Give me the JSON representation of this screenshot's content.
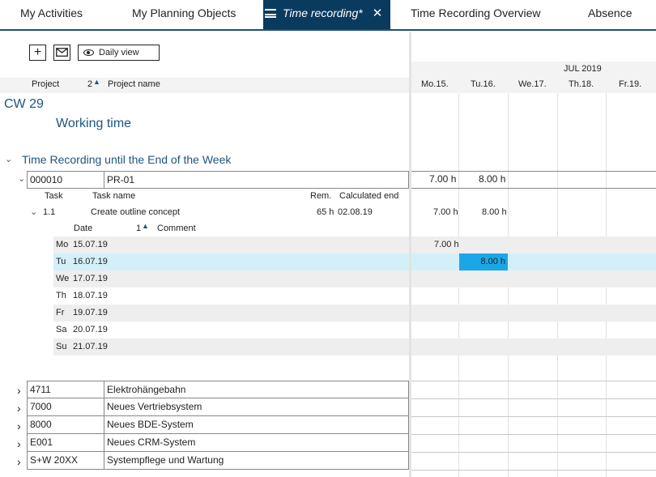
{
  "tabs": [
    {
      "label": "My Activities"
    },
    {
      "label": "My Planning Objects"
    },
    {
      "label": "Time recording*"
    },
    {
      "label": "Time Recording Overview"
    },
    {
      "label": "Absence"
    }
  ],
  "toolbar": {
    "add_icon": "plus-icon",
    "mail_icon": "mail-icon",
    "view_label": "Daily view",
    "view_icon": "eye-icon"
  },
  "header": {
    "project": "Project",
    "sort_index": "2",
    "project_name": "Project name",
    "month": "JUL 2019",
    "days": [
      "Mo.15.",
      "Tu.16.",
      "We.17.",
      "Th.18.",
      "Fr.19."
    ]
  },
  "week": {
    "label": "CW 29",
    "working_time": "Working time"
  },
  "section": {
    "title": "Time Recording until the End of the Week"
  },
  "main_project": {
    "code": "000010",
    "name": "PR-01",
    "totals": [
      "7.00 h",
      "8.00 h"
    ],
    "task_header": {
      "task": "Task",
      "task_name": "Task name",
      "rem": "Rem.",
      "calc_end": "Calculated end"
    },
    "task": {
      "id": "1.1",
      "name": "Create outline concept",
      "rem": "65 h",
      "calc_end": "02.08.19",
      "totals": [
        "7.00 h",
        "8.00 h"
      ]
    },
    "date_header": {
      "date": "Date",
      "sort_index": "1",
      "comment": "Comment"
    },
    "dates": [
      {
        "day": "Mo",
        "date": "15.07.19"
      },
      {
        "day": "Tu",
        "date": "16.07.19"
      },
      {
        "day": "We",
        "date": "17.07.19"
      },
      {
        "day": "Th",
        "date": "18.07.19"
      },
      {
        "day": "Fr",
        "date": "19.07.19"
      },
      {
        "day": "Sa",
        "date": "20.07.19"
      },
      {
        "day": "Su",
        "date": "21.07.19"
      }
    ],
    "entries": {
      "mo": "7.00 h",
      "tu": "8.00 h"
    }
  },
  "other_projects": [
    {
      "code": "4711",
      "name": "Elektrohängebahn"
    },
    {
      "code": "7000",
      "name": "Neues Vertriebsystem"
    },
    {
      "code": "8000",
      "name": "Neues BDE-System"
    },
    {
      "code": "E001",
      "name": "Neues CRM-System"
    },
    {
      "code": "S+W 20XX",
      "name": "Systempflege und Wartung"
    }
  ],
  "colors": {
    "accent": "#0b3a5f",
    "selected_row": "#d3f0f8",
    "selected_cell": "#1aa7e8",
    "heading_blue": "#1f5480"
  }
}
